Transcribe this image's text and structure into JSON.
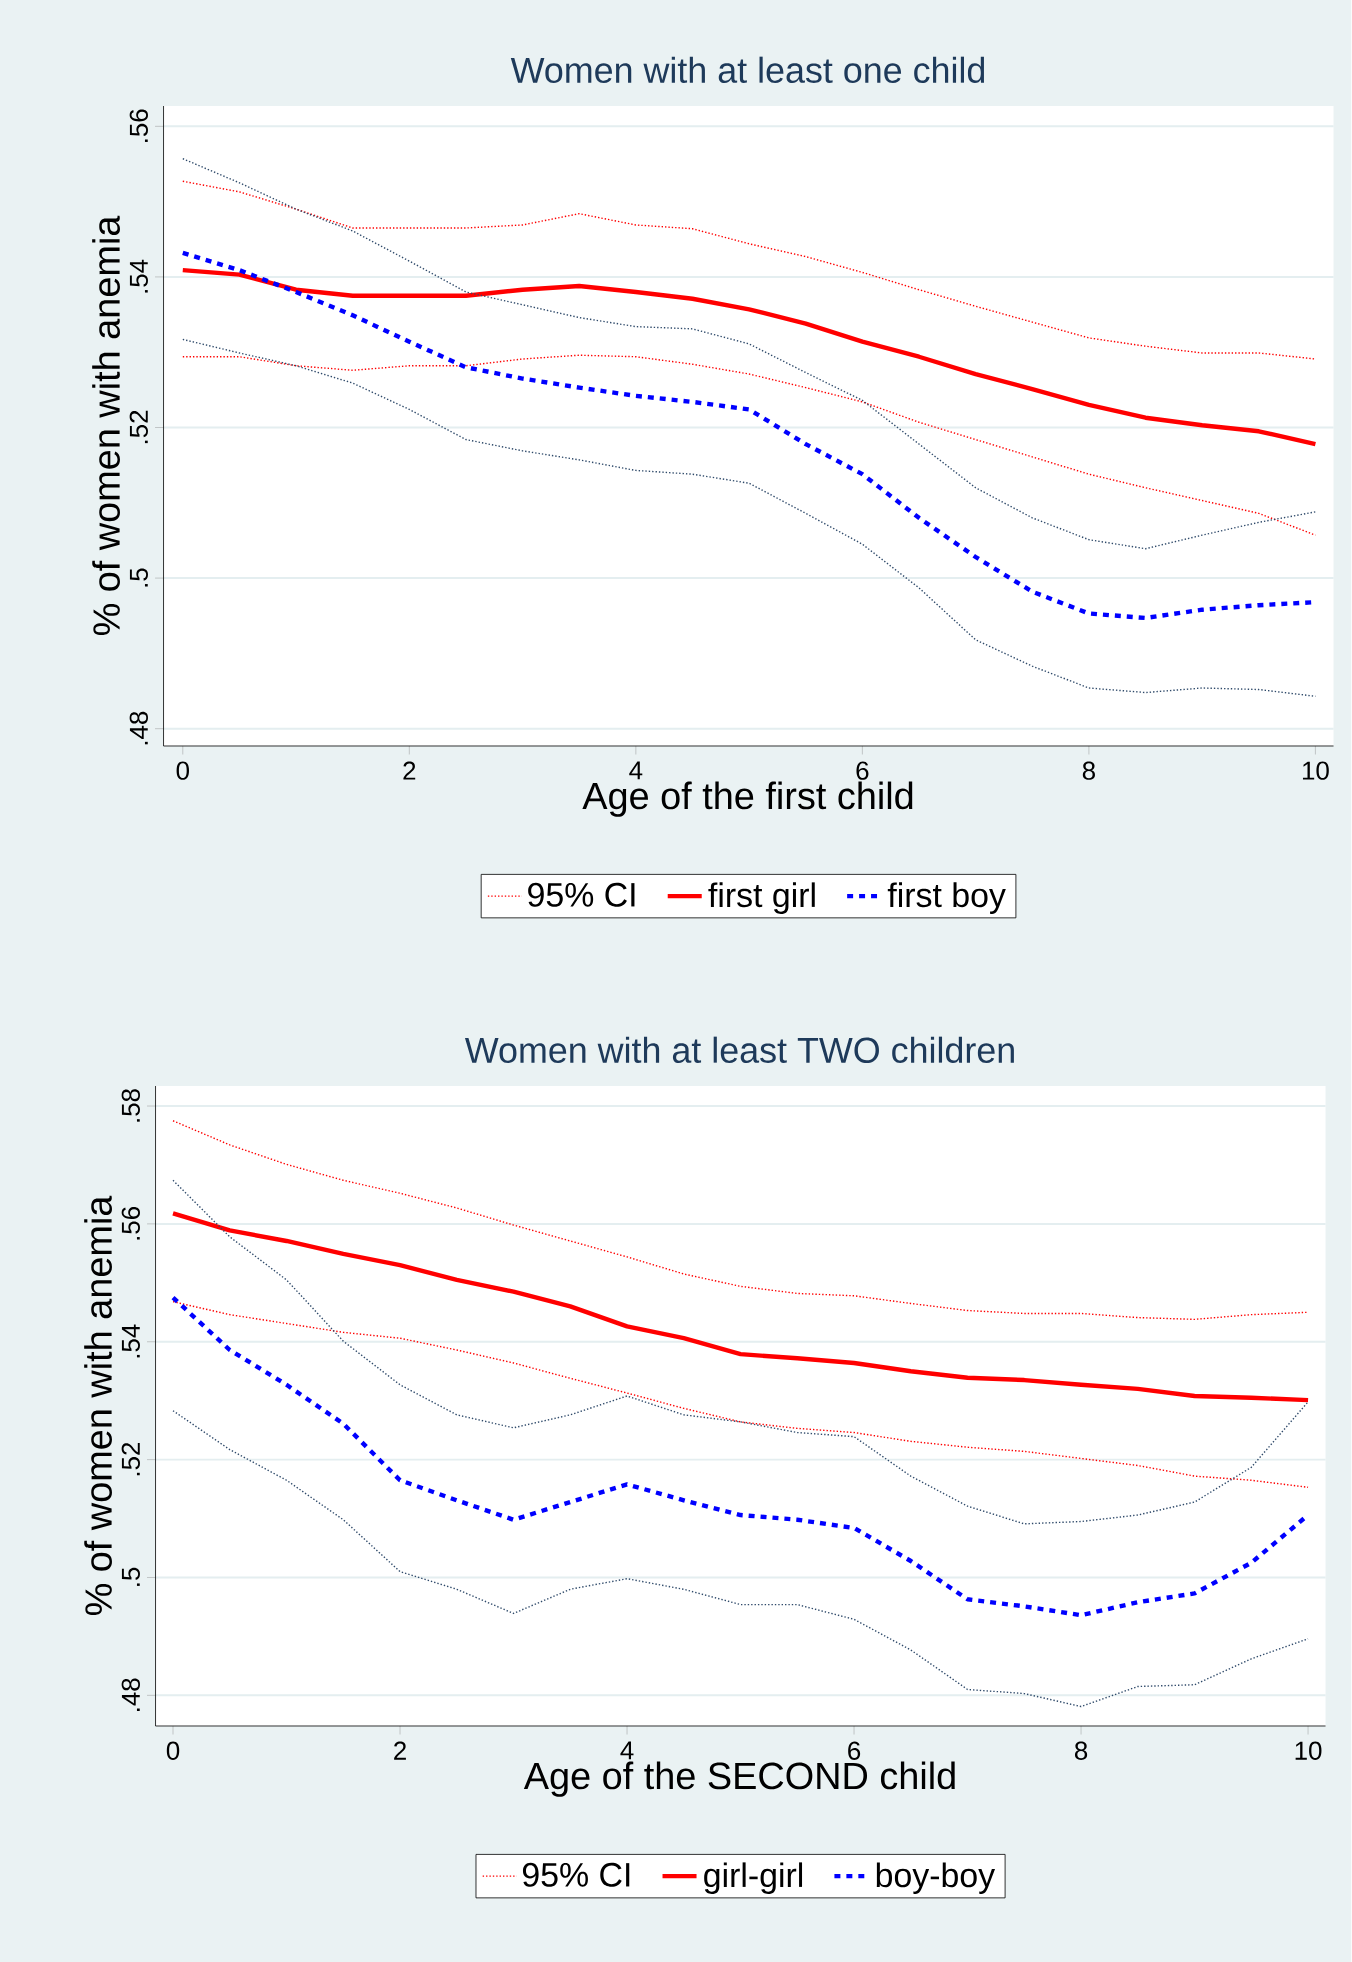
{
  "chart_data": [
    {
      "type": "line",
      "title": "Women with at least one child",
      "xlabel": "Age of the first child",
      "ylabel": "% of women with anemia",
      "grid": "y",
      "legend": "bottom",
      "xlim": [
        -0.17,
        10.16
      ],
      "ylim": [
        0.4777,
        0.5627
      ],
      "xticks": [
        0,
        2,
        4,
        6,
        8,
        10
      ],
      "yticks": [
        {
          "value": 0.48,
          "label": ".48"
        },
        {
          "value": 0.5,
          "label": ".5"
        },
        {
          "value": 0.52,
          "label": ".52"
        },
        {
          "value": 0.54,
          "label": ".54"
        },
        {
          "value": 0.56,
          "label": ".56"
        }
      ],
      "x": [
        0,
        0.5,
        1,
        1.5,
        2,
        2.5,
        3,
        3.5,
        4,
        4.5,
        5,
        5.5,
        6,
        6.5,
        7,
        7.5,
        8,
        8.5,
        9,
        9.5,
        10
      ],
      "series": [
        {
          "name": "95% CI",
          "color": "#ff0000",
          "line_style": "dotted",
          "values": [
            0.5527,
            0.5513,
            0.549,
            0.5465,
            0.5465,
            0.5465,
            0.5469,
            0.5484,
            0.5469,
            0.5464,
            0.5444,
            0.5427,
            0.5406,
            0.5383,
            0.5361,
            0.534,
            0.5319,
            0.5308,
            0.5299,
            0.5299,
            0.5291
          ]
        },
        {
          "color": "#ff0000",
          "line_style": "dotted",
          "values": [
            0.5294,
            0.5294,
            0.5282,
            0.5276,
            0.5282,
            0.5282,
            0.5291,
            0.5296,
            0.5294,
            0.5284,
            0.5271,
            0.5253,
            0.5234,
            0.5207,
            0.5184,
            0.5161,
            0.5138,
            0.512,
            0.5103,
            0.5086,
            0.5057
          ]
        },
        {
          "name": "first girl",
          "color": "#ff0000",
          "line_style": "solid",
          "values": [
            0.5409,
            0.5403,
            0.5383,
            0.5375,
            0.5375,
            0.5375,
            0.5383,
            0.5388,
            0.538,
            0.5371,
            0.5357,
            0.5338,
            0.5314,
            0.5294,
            0.5271,
            0.5251,
            0.523,
            0.5213,
            0.5203,
            0.5195,
            0.5178
          ]
        },
        {
          "name": "first boy",
          "color": "#0000ff",
          "line_style": "dashed",
          "values": [
            0.5432,
            0.5409,
            0.538,
            0.5349,
            0.5314,
            0.528,
            0.5265,
            0.5253,
            0.5242,
            0.5234,
            0.5224,
            0.5178,
            0.5138,
            0.508,
            0.5028,
            0.4982,
            0.4953,
            0.4947,
            0.4958,
            0.4964,
            0.4968
          ]
        },
        {
          "color": "#2f4a6a",
          "line_style": "dotted",
          "values": [
            0.5557,
            0.5525,
            0.549,
            0.5461,
            0.5421,
            0.538,
            0.5363,
            0.5346,
            0.5334,
            0.5331,
            0.5311,
            0.5273,
            0.5236,
            0.5178,
            0.512,
            0.508,
            0.5051,
            0.5039,
            0.5057,
            0.5074,
            0.5088
          ]
        },
        {
          "color": "#2f4a6a",
          "line_style": "dotted",
          "values": [
            0.5317,
            0.5299,
            0.5282,
            0.5259,
            0.5224,
            0.5184,
            0.5169,
            0.5157,
            0.5143,
            0.5138,
            0.5126,
            0.5086,
            0.5045,
            0.4987,
            0.4918,
            0.4883,
            0.4854,
            0.4848,
            0.4854,
            0.4852,
            0.4843
          ]
        }
      ]
    },
    {
      "type": "line",
      "title": "Women with at least TWO children",
      "xlabel": "Age of the SECOND child",
      "ylabel": "% of women with anemia",
      "grid": "y",
      "legend": "bottom",
      "xlim": [
        -0.154,
        10.154
      ],
      "ylim": [
        0.4748,
        0.5834
      ],
      "xticks": [
        0,
        2,
        4,
        6,
        8,
        10
      ],
      "yticks": [
        {
          "value": 0.48,
          "label": ".48"
        },
        {
          "value": 0.5,
          "label": ".5"
        },
        {
          "value": 0.52,
          "label": ".52"
        },
        {
          "value": 0.54,
          "label": ".54"
        },
        {
          "value": 0.56,
          "label": ".56"
        },
        {
          "value": 0.58,
          "label": ".58"
        }
      ],
      "x": [
        0,
        0.5,
        1,
        1.5,
        2,
        2.5,
        3,
        3.5,
        4,
        4.5,
        5,
        5.5,
        6,
        6.5,
        7,
        7.5,
        8,
        8.5,
        9,
        9.5,
        10
      ],
      "series": [
        {
          "name": "95% CI",
          "color": "#ff0000",
          "line_style": "dotted",
          "values": [
            0.5775,
            0.5734,
            0.5701,
            0.5674,
            0.5652,
            0.5627,
            0.5598,
            0.5571,
            0.5544,
            0.5515,
            0.5494,
            0.5482,
            0.5478,
            0.5465,
            0.5453,
            0.5448,
            0.5448,
            0.5441,
            0.5438,
            0.5446,
            0.545
          ]
        },
        {
          "color": "#ff0000",
          "line_style": "dotted",
          "values": [
            0.5468,
            0.5446,
            0.5431,
            0.5416,
            0.5406,
            0.5386,
            0.5364,
            0.5338,
            0.5313,
            0.5287,
            0.5264,
            0.5253,
            0.5246,
            0.5231,
            0.5221,
            0.5214,
            0.5202,
            0.519,
            0.5172,
            0.5165,
            0.5153
          ]
        },
        {
          "name": "girl-girl",
          "color": "#ff0000",
          "line_style": "solid",
          "values": [
            0.5618,
            0.5589,
            0.5571,
            0.5549,
            0.553,
            0.5505,
            0.5485,
            0.546,
            0.5426,
            0.5406,
            0.5379,
            0.5372,
            0.5364,
            0.535,
            0.5339,
            0.5335,
            0.5327,
            0.532,
            0.5308,
            0.5305,
            0.5301
          ]
        },
        {
          "name": "boy-boy",
          "color": "#0000ff",
          "line_style": "dashed",
          "values": [
            0.5475,
            0.5386,
            0.5327,
            0.5261,
            0.5165,
            0.5131,
            0.5098,
            0.5128,
            0.5158,
            0.5131,
            0.5106,
            0.5098,
            0.5084,
            0.5028,
            0.4963,
            0.4951,
            0.4936,
            0.4958,
            0.4973,
            0.5025,
            0.5106
          ]
        },
        {
          "color": "#2f4a6a",
          "line_style": "dotted",
          "values": [
            0.5674,
            0.5578,
            0.5505,
            0.5401,
            0.5327,
            0.5276,
            0.5254,
            0.5276,
            0.5308,
            0.5276,
            0.5264,
            0.5246,
            0.5239,
            0.5172,
            0.5121,
            0.5091,
            0.5095,
            0.5106,
            0.5128,
            0.5187,
            0.5298
          ]
        },
        {
          "color": "#2f4a6a",
          "line_style": "dotted",
          "values": [
            0.5283,
            0.5217,
            0.5165,
            0.5098,
            0.501,
            0.498,
            0.4939,
            0.498,
            0.4998,
            0.498,
            0.4954,
            0.4954,
            0.4929,
            0.4877,
            0.481,
            0.4803,
            0.4781,
            0.4815,
            0.4818,
            0.4862,
            0.4896
          ]
        }
      ]
    }
  ]
}
